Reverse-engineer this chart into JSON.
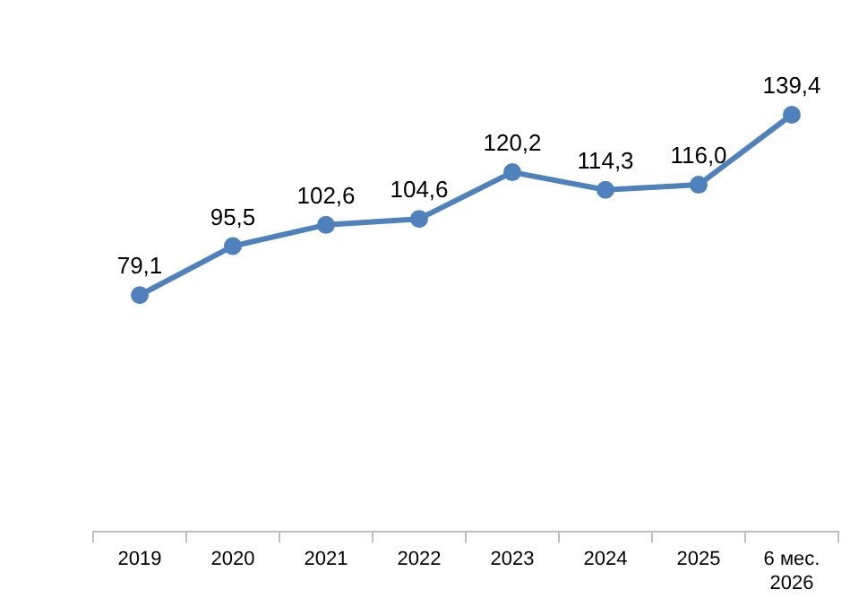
{
  "chart_data": {
    "type": "line",
    "categories": [
      "2019",
      "2020",
      "2021",
      "2022",
      "2023",
      "2024",
      "2025",
      "6 мес. 2026"
    ],
    "series": [
      {
        "color": "#4f81bd",
        "values": [
          79.1,
          95.5,
          102.6,
          104.6,
          120.2,
          114.3,
          116.0,
          139.4
        ],
        "value_labels": [
          "79,1",
          "95,5",
          "102,6",
          "104,6",
          "120,2",
          "114,3",
          "116,0",
          "139,4"
        ]
      }
    ],
    "tick_labels": "x",
    "marker": "circle",
    "line_style": "solid",
    "legend": false,
    "grid": false
  }
}
